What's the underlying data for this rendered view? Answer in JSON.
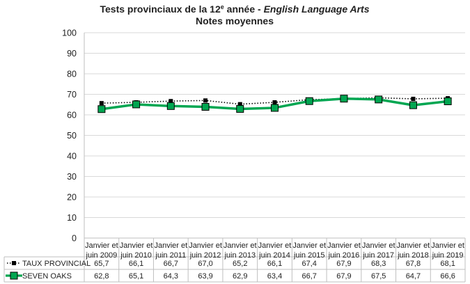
{
  "chart_data": {
    "type": "line",
    "title_line1_prefix": "Tests provinciaux de la 12",
    "title_line1_sup": "e",
    "title_line1_mid": " année - ",
    "title_line1_italic": "English Language Arts",
    "title_line2": "Notes moyennes",
    "ylim": [
      0,
      100
    ],
    "yticks": [
      0,
      10,
      20,
      30,
      40,
      50,
      60,
      70,
      80,
      90,
      100
    ],
    "grid": true,
    "categories": [
      [
        "Janvier et",
        "juin 2009"
      ],
      [
        "Janvier et",
        "juin 2010"
      ],
      [
        "Janvier et",
        "juin 2011"
      ],
      [
        "Janvier et",
        "juin 2012"
      ],
      [
        "Janvier et",
        "juin 2013"
      ],
      [
        "Janvier et",
        "juin 2014"
      ],
      [
        "Janvier et",
        "juin 2015"
      ],
      [
        "Janvier et",
        "juin 2016"
      ],
      [
        "Janvier et",
        "juin 2017"
      ],
      [
        "Janvier et",
        "juin 2018"
      ],
      [
        "Janvier et",
        "juin 2019"
      ]
    ],
    "series": [
      {
        "name": "TAUX PROVINCIAL",
        "color": "#000000",
        "style": "dotted",
        "values": [
          65.7,
          66.1,
          66.7,
          67.0,
          65.2,
          66.1,
          67.4,
          67.9,
          68.3,
          67.8,
          68.1
        ],
        "labels": [
          "65,7",
          "66,1",
          "66,7",
          "67,0",
          "65,2",
          "66,1",
          "67,4",
          "67,9",
          "68,3",
          "67,8",
          "68,1"
        ]
      },
      {
        "name": "SEVEN OAKS",
        "color": "#00a651",
        "style": "solid",
        "values": [
          62.8,
          65.1,
          64.3,
          63.9,
          62.9,
          63.4,
          66.7,
          67.9,
          67.5,
          64.7,
          66.6
        ],
        "labels": [
          "62,8",
          "65,1",
          "64,3",
          "63,9",
          "62,9",
          "63,4",
          "66,7",
          "67,9",
          "67,5",
          "64,7",
          "66,6"
        ]
      }
    ]
  }
}
